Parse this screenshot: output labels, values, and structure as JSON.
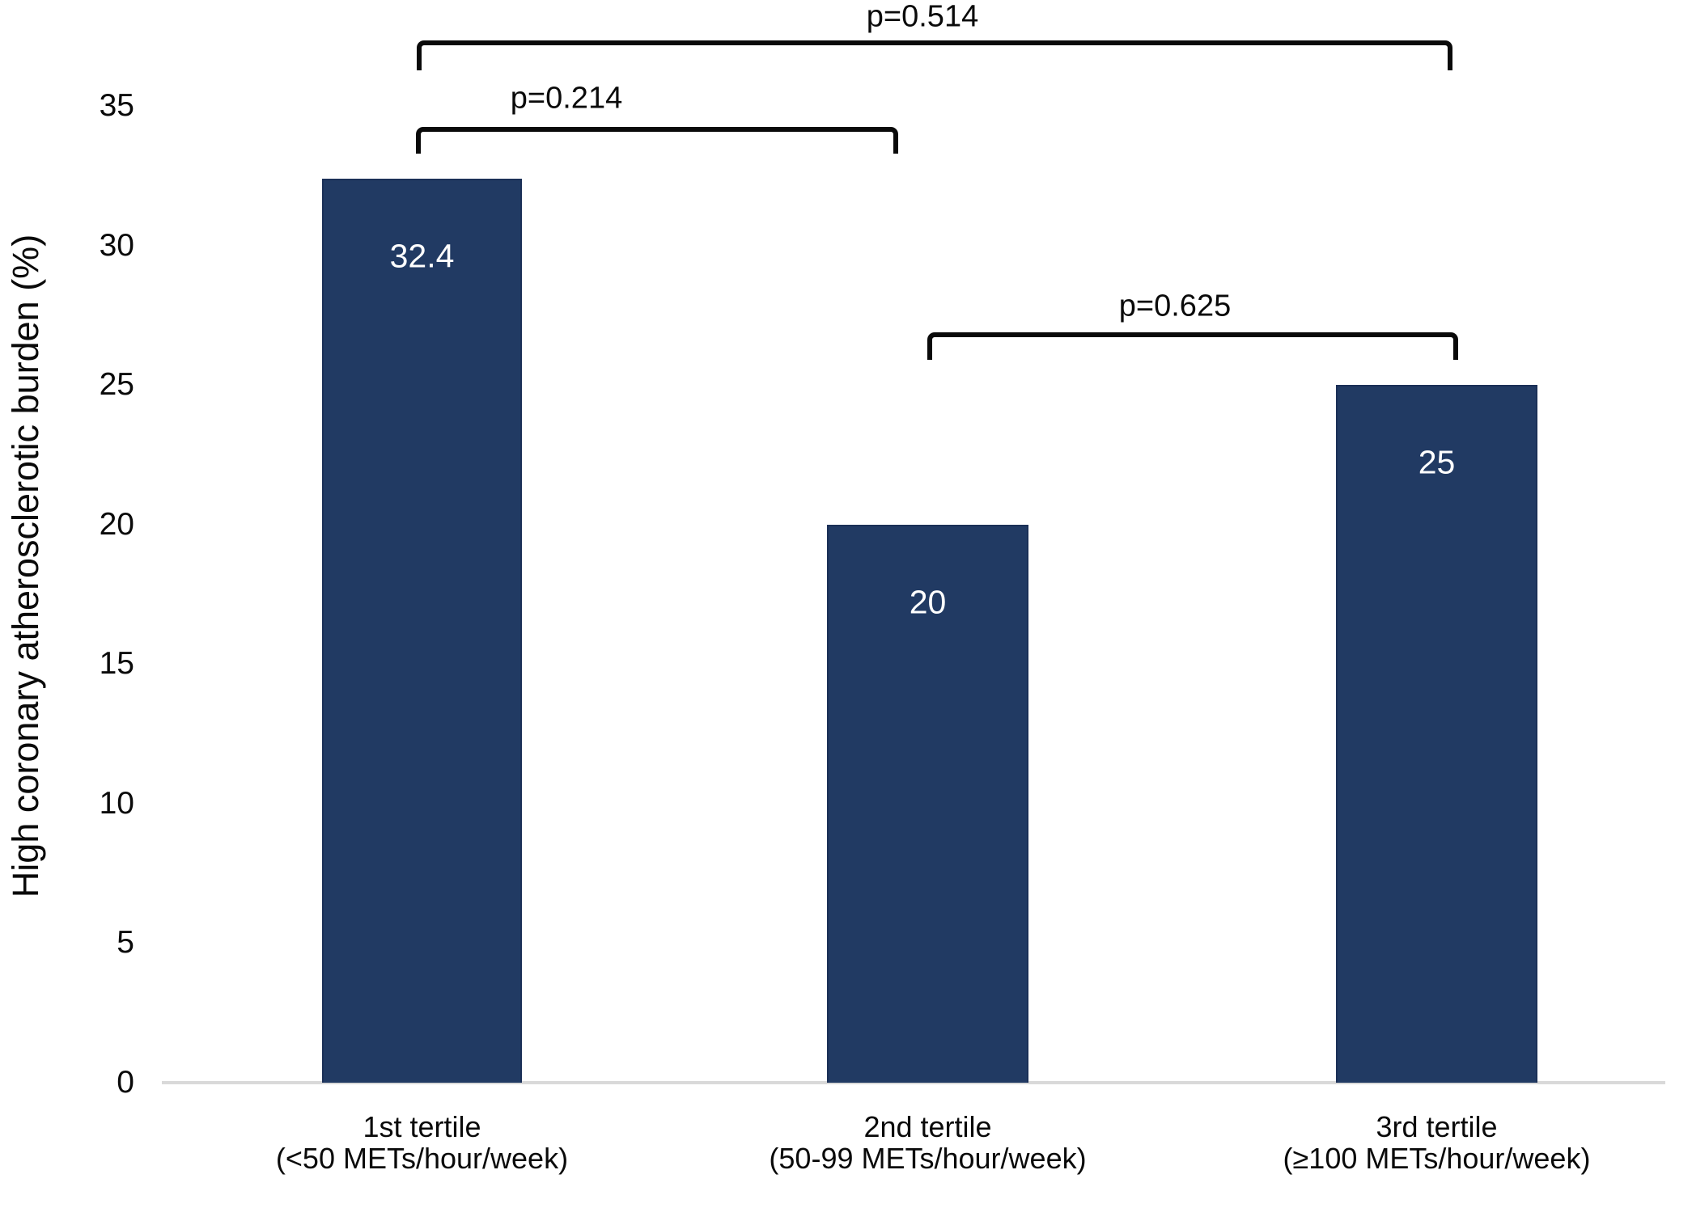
{
  "chart_data": {
    "type": "bar",
    "title": "",
    "xlabel": "",
    "ylabel": "High coronary atherosclerotic burden (%)",
    "ylim": [
      0,
      35
    ],
    "yticks": [
      0,
      5,
      10,
      15,
      20,
      25,
      30,
      35
    ],
    "grid": false,
    "legend_position": "none",
    "bar_color": "#213a63",
    "bar_edge_color": "#1b3057",
    "value_label_color": "#ffffff",
    "baseline_color": "#d9d9d9",
    "text_color": "#0a0a0a",
    "categories": [
      "1st tertile",
      "2nd tertile",
      "3rd tertile"
    ],
    "category_sublabels": [
      "(<50 METs/hour/week)",
      "(50-99 METs/hour/week)",
      "(≥100 METs/hour/week)"
    ],
    "values": [
      32.4,
      20,
      25
    ],
    "value_labels": [
      "32.4",
      "20",
      "25"
    ],
    "comparisons": [
      {
        "label": "p=0.514",
        "from": 0,
        "to": 2
      },
      {
        "label": "p=0.214",
        "from": 0,
        "to": 1
      },
      {
        "label": "p=0.625",
        "from": 1,
        "to": 2
      }
    ]
  }
}
